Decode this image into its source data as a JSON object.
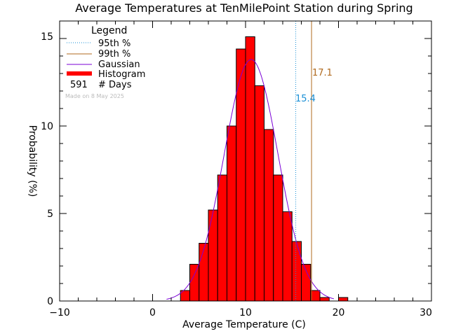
{
  "chart_data": {
    "type": "bar",
    "title": "Average Temperatures at TenMilePoint Station during Spring",
    "xlabel": "Average Temperature (C)",
    "ylabel": "Probability (%)",
    "xlim": [
      -10,
      30
    ],
    "ylim": [
      0,
      16
    ],
    "xticks": [
      "−10",
      "0",
      "10",
      "20",
      "30"
    ],
    "yticks": [
      "0",
      "5",
      "10",
      "15"
    ],
    "grid": false,
    "legend_position": "top-left",
    "bin_width": 1,
    "bins": [
      {
        "x0": 3,
        "x1": 4,
        "value": 0.6
      },
      {
        "x0": 4,
        "x1": 5,
        "value": 2.1
      },
      {
        "x0": 5,
        "x1": 6,
        "value": 3.3
      },
      {
        "x0": 6,
        "x1": 7,
        "value": 5.2
      },
      {
        "x0": 7,
        "x1": 8,
        "value": 7.2
      },
      {
        "x0": 8,
        "x1": 9,
        "value": 10.0
      },
      {
        "x0": 9,
        "x1": 10,
        "value": 14.4
      },
      {
        "x0": 10,
        "x1": 11,
        "value": 15.1
      },
      {
        "x0": 11,
        "x1": 12,
        "value": 12.3
      },
      {
        "x0": 12,
        "x1": 13,
        "value": 9.8
      },
      {
        "x0": 13,
        "x1": 14,
        "value": 7.2
      },
      {
        "x0": 14,
        "x1": 15,
        "value": 5.1
      },
      {
        "x0": 15,
        "x1": 16,
        "value": 3.4
      },
      {
        "x0": 16,
        "x1": 17,
        "value": 2.1
      },
      {
        "x0": 17,
        "x1": 18,
        "value": 0.6
      },
      {
        "x0": 18,
        "x1": 19,
        "value": 0.2
      },
      {
        "x0": 20,
        "x1": 21,
        "value": 0.2
      }
    ],
    "gaussian": {
      "mean": 10.6,
      "sigma": 2.9,
      "peak": 13.8
    },
    "percentile_95": {
      "value": 15.4,
      "label": "15.4"
    },
    "percentile_99": {
      "value": 17.1,
      "label": "17.1"
    },
    "days": 591,
    "colors": {
      "histogram": "#ff0000",
      "gaussian": "#7a00d6",
      "p95": "#1a8fd6",
      "p99": "#b06a1e",
      "axes": "#000000"
    }
  },
  "legend": {
    "title": "Legend",
    "items": [
      {
        "label": "95th %"
      },
      {
        "label": "99th %"
      },
      {
        "label": "Gaussian"
      },
      {
        "label": "Histogram"
      }
    ],
    "days_value": "591",
    "days_label": "# Days"
  },
  "credit": "Made on 8 May 2025"
}
